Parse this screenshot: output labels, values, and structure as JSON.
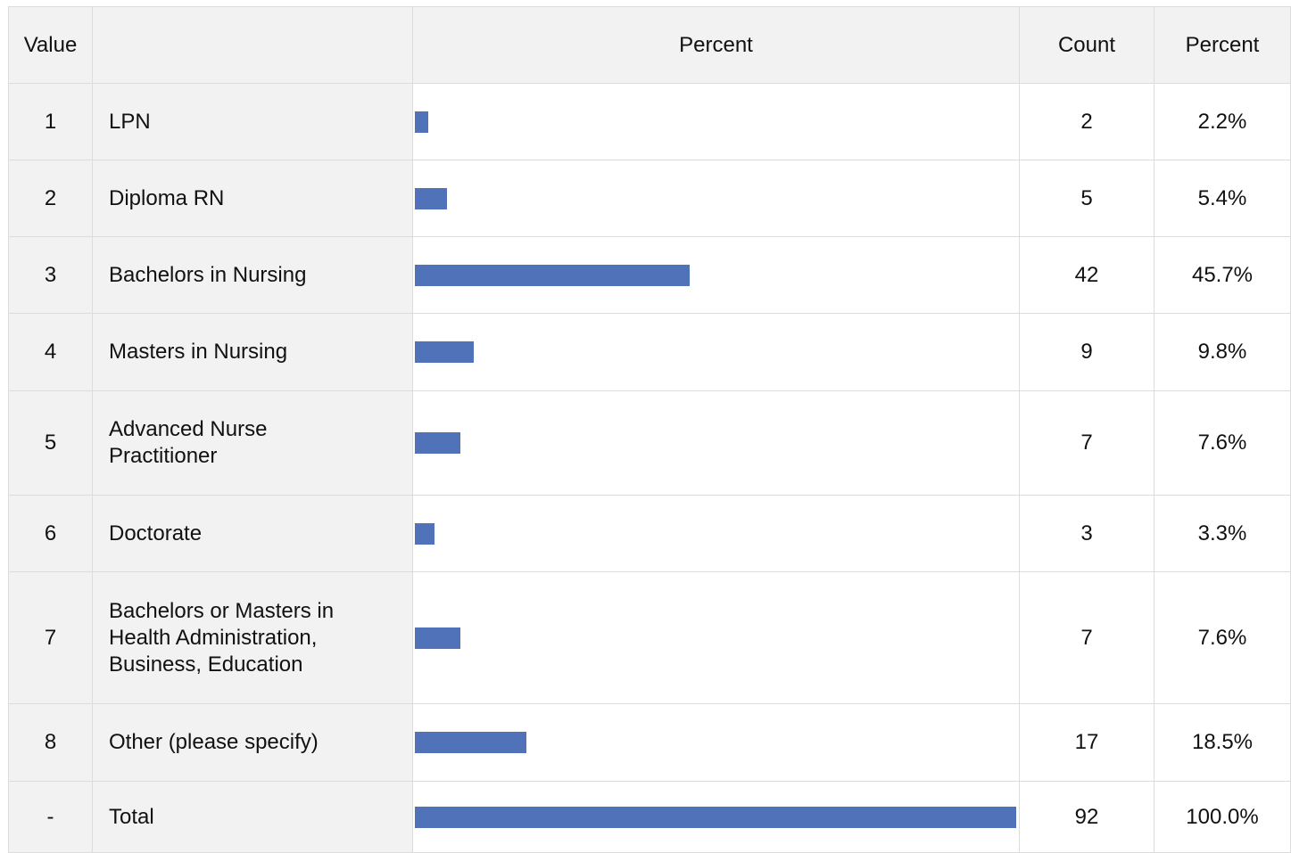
{
  "table": {
    "header": [
      "Value",
      "Percent",
      "Count",
      "Percent"
    ],
    "rows": [
      {
        "value": "1",
        "label": "LPN",
        "count": 2,
        "percent": 2.2,
        "percent_label": "2.2%"
      },
      {
        "value": "2",
        "label": "Diploma RN",
        "count": 5,
        "percent": 5.4,
        "percent_label": "5.4%"
      },
      {
        "value": "3",
        "label": "Bachelors in Nursing",
        "count": 42,
        "percent": 45.7,
        "percent_label": "45.7%"
      },
      {
        "value": "4",
        "label": "Masters in Nursing",
        "count": 9,
        "percent": 9.8,
        "percent_label": "9.8%"
      },
      {
        "value": "5",
        "label": "Advanced Nurse Practitioner",
        "count": 7,
        "percent": 7.6,
        "percent_label": "7.6%"
      },
      {
        "value": "6",
        "label": "Doctorate",
        "count": 3,
        "percent": 3.3,
        "percent_label": "3.3%"
      },
      {
        "value": "7",
        "label": "Bachelors or Masters in Health Administration, Business, Education",
        "count": 7,
        "percent": 7.6,
        "percent_label": "7.6%"
      },
      {
        "value": "8",
        "label": "Other (please specify)",
        "count": 17,
        "percent": 18.5,
        "percent_label": "18.5%"
      },
      {
        "value": "-",
        "label": "Total",
        "count": 92,
        "percent": 100.0,
        "percent_label": "100.0%"
      }
    ],
    "bar_color": "#5072b9"
  }
}
